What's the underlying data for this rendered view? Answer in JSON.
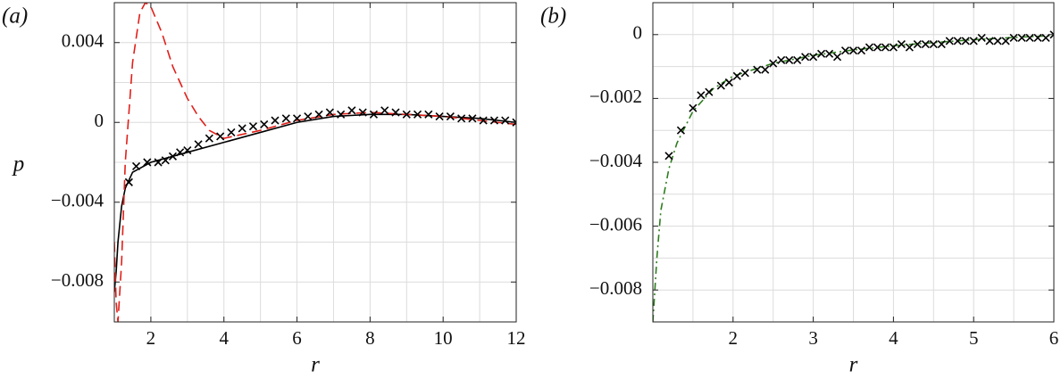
{
  "chart_data": [
    {
      "type": "line",
      "panel_label": "(a)",
      "xlabel": "r",
      "ylabel": "p",
      "xlim": [
        1,
        12
      ],
      "ylim": [
        -0.01,
        0.006
      ],
      "xticks": [
        2,
        4,
        6,
        8,
        10,
        12
      ],
      "yticks": [
        {
          "value": 0.004,
          "label": "0.004"
        },
        0,
        {
          "value": -0.004,
          "label": "−0.004"
        },
        {
          "value": -0.008,
          "label": "−0.008"
        }
      ],
      "xgrid": [
        1,
        2,
        3,
        4,
        5,
        6,
        7,
        8,
        9,
        10,
        11,
        12
      ],
      "ygrid": [
        -0.01,
        -0.008,
        -0.006,
        -0.004,
        -0.002,
        0,
        0.002,
        0.004,
        0.006
      ],
      "grid": true,
      "series": [
        {
          "color": "#000000",
          "style": "solid",
          "x": [
            1.0,
            1.05,
            1.1,
            1.2,
            1.3,
            1.5,
            2,
            3,
            4,
            5,
            6,
            7,
            8,
            9,
            10,
            11,
            12
          ],
          "values": [
            -0.0085,
            -0.0075,
            -0.006,
            -0.0042,
            -0.0033,
            -0.0025,
            -0.002,
            -0.0015,
            -0.001,
            -0.0005,
            0,
            0.0003,
            0.0004,
            0.0004,
            0.0003,
            0.0002,
            0
          ]
        },
        {
          "color": "#e0201a",
          "style": "dashed",
          "x": [
            1.0,
            1.05,
            1.1,
            1.2,
            1.3,
            1.5,
            1.7,
            1.85,
            2.0,
            2.3,
            2.6,
            3.0,
            3.3,
            3.6,
            4,
            5,
            6,
            7,
            8,
            9,
            10,
            11,
            12
          ],
          "values": [
            -0.006,
            -0.009,
            -0.01,
            -0.007,
            -0.002,
            0.003,
            0.0055,
            0.006,
            0.0058,
            0.0045,
            0.0028,
            0.0012,
            0.0003,
            -0.0004,
            -0.0008,
            -0.0004,
            0.0001,
            0.0004,
            0.0005,
            0.0004,
            0.0003,
            0.0001,
            -0.0001
          ]
        },
        {
          "color": "#000000",
          "style": "marker",
          "x": [
            1.4,
            1.6,
            1.9,
            2.2,
            2.4,
            2.6,
            2.8,
            3.0,
            3.3,
            3.6,
            3.9,
            4.2,
            4.5,
            4.8,
            5.1,
            5.4,
            5.7,
            6.0,
            6.3,
            6.6,
            6.9,
            7.2,
            7.5,
            7.8,
            8.1,
            8.4,
            8.7,
            9.0,
            9.3,
            9.6,
            9.9,
            10.2,
            10.5,
            10.8,
            11.1,
            11.4,
            11.7,
            12.0
          ],
          "values": [
            -0.003,
            -0.0022,
            -0.002,
            -0.002,
            -0.0019,
            -0.0017,
            -0.0015,
            -0.0014,
            -0.0011,
            -0.0008,
            -0.0007,
            -0.0005,
            -0.0003,
            -0.0002,
            -0.0001,
            0.0001,
            0.0002,
            0.0002,
            0.0003,
            0.0004,
            0.0005,
            0.0004,
            0.0006,
            0.0005,
            0.0004,
            0.0006,
            0.0005,
            0.0004,
            0.0004,
            0.0004,
            0.0003,
            0.0003,
            0.0002,
            0.0002,
            0.0001,
            0.0001,
            0.0001,
            0
          ]
        }
      ]
    },
    {
      "type": "line",
      "panel_label": "(b)",
      "xlabel": "r",
      "xlim": [
        1,
        6
      ],
      "ylim": [
        -0.009,
        0.001
      ],
      "xticks": [
        2,
        3,
        4,
        5,
        6
      ],
      "yticks": [
        0,
        {
          "value": -0.002,
          "label": "−0.002"
        },
        {
          "value": -0.004,
          "label": "−0.004"
        },
        {
          "value": -0.006,
          "label": "−0.006"
        },
        {
          "value": -0.008,
          "label": "−0.008"
        }
      ],
      "xgrid": [
        1,
        1.5,
        2,
        2.5,
        3,
        3.5,
        4,
        4.5,
        5,
        5.5,
        6
      ],
      "ygrid": [
        -0.009,
        -0.008,
        -0.007,
        -0.006,
        -0.005,
        -0.004,
        -0.003,
        -0.002,
        -0.001,
        0,
        0.001
      ],
      "grid": true,
      "series": [
        {
          "color": "#2e7d1e",
          "style": "dashdot",
          "x": [
            1.0,
            1.05,
            1.1,
            1.2,
            1.3,
            1.5,
            1.75,
            2,
            2.5,
            3,
            3.5,
            4,
            4.5,
            5,
            5.5,
            6
          ],
          "values": [
            -0.009,
            -0.007,
            -0.0055,
            -0.0042,
            -0.0034,
            -0.0024,
            -0.0017,
            -0.0013,
            -0.0009,
            -0.00065,
            -0.00048,
            -0.00035,
            -0.00025,
            -0.00016,
            -9e-05,
            -3e-05
          ]
        },
        {
          "color": "#000000",
          "style": "marker",
          "x": [
            1.2,
            1.35,
            1.5,
            1.6,
            1.7,
            1.85,
            1.95,
            2.05,
            2.15,
            2.3,
            2.4,
            2.5,
            2.6,
            2.7,
            2.8,
            2.9,
            3.0,
            3.1,
            3.2,
            3.3,
            3.4,
            3.5,
            3.6,
            3.7,
            3.8,
            3.9,
            4.0,
            4.1,
            4.2,
            4.3,
            4.4,
            4.5,
            4.6,
            4.7,
            4.8,
            4.9,
            5.0,
            5.1,
            5.2,
            5.3,
            5.4,
            5.5,
            5.6,
            5.7,
            5.8,
            5.9,
            6.0
          ],
          "values": [
            -0.0038,
            -0.003,
            -0.0023,
            -0.0019,
            -0.0018,
            -0.0016,
            -0.0015,
            -0.0013,
            -0.0012,
            -0.0011,
            -0.0011,
            -0.0009,
            -0.0008,
            -0.0008,
            -0.0008,
            -0.0007,
            -0.0007,
            -0.0006,
            -0.0006,
            -0.0007,
            -0.0005,
            -0.0005,
            -0.0005,
            -0.0004,
            -0.0004,
            -0.0004,
            -0.0004,
            -0.0003,
            -0.0004,
            -0.0003,
            -0.0003,
            -0.0003,
            -0.0003,
            -0.0002,
            -0.0002,
            -0.0002,
            -0.0002,
            -0.0001,
            -0.0002,
            -0.0002,
            -0.0002,
            -0.0001,
            -0.0001,
            -0.0001,
            -0.0001,
            -0.0001,
            0
          ]
        }
      ]
    }
  ]
}
